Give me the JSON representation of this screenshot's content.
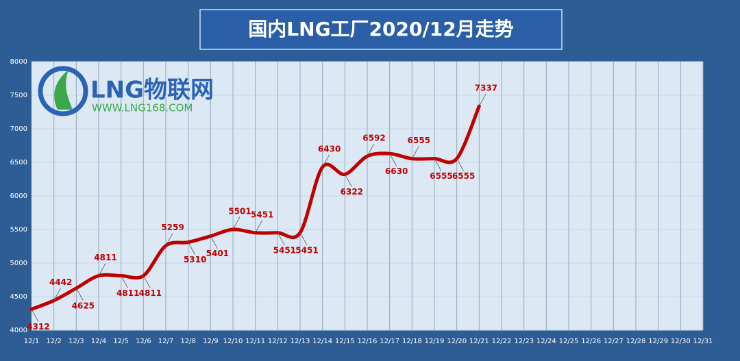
{
  "chart_data": {
    "type": "line",
    "title": "国内LNG工厂2020/12月走势",
    "watermark": "LNG物联网",
    "watermark_url": "WWW.LNG168.COM",
    "categories": [
      "12/1",
      "12/2",
      "12/3",
      "12/4",
      "12/5",
      "12/6",
      "12/7",
      "12/8",
      "12/9",
      "12/10",
      "12/11",
      "12/12",
      "12/13",
      "12/14",
      "12/15",
      "12/16",
      "12/17",
      "12/18",
      "12/19",
      "12/20",
      "12/21",
      "12/22",
      "12/23",
      "12/24",
      "12/25",
      "12/26",
      "12/27",
      "12/28",
      "12/29",
      "12/30",
      "12/31"
    ],
    "series": [
      {
        "name": "LNG",
        "color": "#c00000",
        "values": [
          4312,
          4442,
          4625,
          4811,
          4811,
          4811,
          5259,
          5310,
          5401,
          5501,
          5451,
          5451,
          5451,
          6430,
          6322,
          6592,
          6630,
          6555,
          6555,
          6555,
          7337,
          null,
          null,
          null,
          null,
          null,
          null,
          null,
          null,
          null,
          null
        ]
      }
    ],
    "ylim": [
      4000,
      8000
    ],
    "yticks": [
      4000,
      4500,
      5000,
      5500,
      6000,
      6500,
      7000,
      7500,
      8000
    ],
    "grid": true
  }
}
